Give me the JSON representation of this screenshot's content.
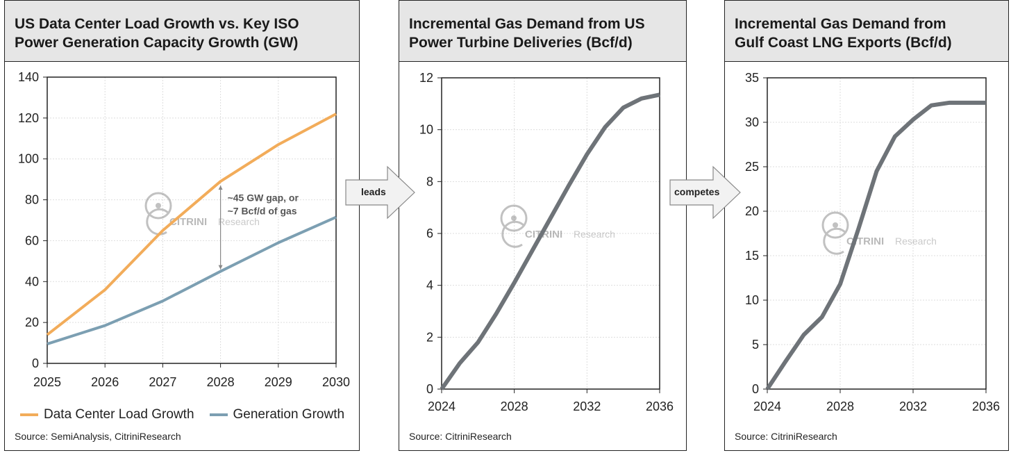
{
  "connectors": [
    {
      "label": "leads"
    },
    {
      "label": "competes"
    }
  ],
  "watermark": {
    "brand": "CITRINI",
    "suffix": "Research"
  },
  "chart_data": [
    {
      "type": "line",
      "title": "US Data Center Load Growth vs. Key ISO Power Generation Capacity Growth (GW)",
      "title_lines": [
        "US Data Center Load Growth vs. Key ISO",
        "Power Generation Capacity Growth (GW)"
      ],
      "x": [
        2025,
        2026,
        2027,
        2028,
        2029,
        2030
      ],
      "xticks": [
        2025,
        2026,
        2027,
        2028,
        2029,
        2030
      ],
      "xlim": [
        2025,
        2030
      ],
      "ylim": [
        0,
        140
      ],
      "yticks": [
        0,
        20,
        40,
        60,
        80,
        100,
        120,
        140
      ],
      "grid": true,
      "legend": "bottom",
      "series": [
        {
          "name": "Data Center Load Growth",
          "color": "#f2ac5a",
          "values": [
            14,
            36,
            65,
            89,
            107,
            122
          ]
        },
        {
          "name": "Generation Growth",
          "color": "#7c9fb2",
          "values": [
            9.5,
            18.5,
            30.5,
            45,
            59,
            71.5
          ]
        }
      ],
      "annotation": {
        "lines": [
          "~45 GW gap, or",
          "~7 Bcf/d of gas"
        ],
        "x": 2028,
        "y_from": 46,
        "y_to": 87
      },
      "source": "Source: SemiAnalysis, CitriniResearch"
    },
    {
      "type": "line",
      "title": "Incremental Gas Demand from US Power Turbine Deliveries (Bcf/d)",
      "title_lines": [
        "Incremental Gas Demand from US",
        "Power Turbine Deliveries (Bcf/d)"
      ],
      "x": [
        2024,
        2025,
        2026,
        2027,
        2028,
        2029,
        2030,
        2031,
        2032,
        2033,
        2034,
        2035,
        2036
      ],
      "xticks": [
        2024,
        2028,
        2032,
        2036
      ],
      "xlim": [
        2024,
        2036
      ],
      "ylim": [
        0,
        12
      ],
      "yticks": [
        0,
        2,
        4,
        6,
        8,
        10,
        12
      ],
      "grid": true,
      "series": [
        {
          "name": "Incremental Gas Demand",
          "color": "#6e7378",
          "values": [
            0,
            1.0,
            1.8,
            2.9,
            4.1,
            5.35,
            6.6,
            7.85,
            9.05,
            10.1,
            10.85,
            11.2,
            11.35
          ]
        }
      ],
      "source": "Source: CitriniResearch"
    },
    {
      "type": "line",
      "title": "Incremental Gas Demand from Gulf Coast LNG Exports (Bcf/d)",
      "title_lines": [
        "Incremental Gas Demand from",
        "Gulf Coast LNG Exports (Bcf/d)"
      ],
      "x": [
        2024,
        2025,
        2026,
        2027,
        2028,
        2029,
        2030,
        2031,
        2032,
        2033,
        2034,
        2035,
        2036
      ],
      "xticks": [
        2024,
        2028,
        2032,
        2036
      ],
      "xlim": [
        2024,
        2036
      ],
      "ylim": [
        0,
        35
      ],
      "yticks": [
        0,
        5,
        10,
        15,
        20,
        25,
        30,
        35
      ],
      "grid": true,
      "series": [
        {
          "name": "Incremental Gas Demand",
          "color": "#6e7378",
          "values": [
            0,
            3.1,
            6.1,
            8.1,
            11.8,
            18,
            24.5,
            28.4,
            30.3,
            31.9,
            32.2,
            32.2,
            32.2
          ]
        }
      ],
      "source": "Source: CitriniResearch"
    }
  ]
}
